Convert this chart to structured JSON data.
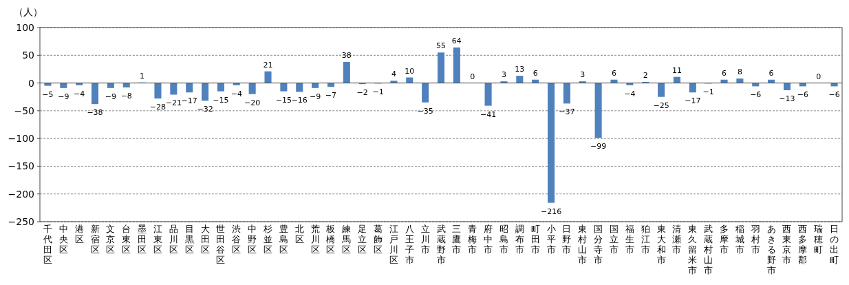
{
  "chart_data": {
    "type": "bar",
    "ylabel": "（人）",
    "categories": [
      "千代田区",
      "中央区",
      "港区",
      "新宿区",
      "文京区",
      "台東区",
      "墨田区",
      "江東区",
      "品川区",
      "目黒区",
      "大田区",
      "世田谷区",
      "渋谷区",
      "中野区",
      "杉並区",
      "豊島区",
      "北区",
      "荒川区",
      "板橋区",
      "練馬区",
      "足立区",
      "葛飾区",
      "江戸川区",
      "八王子市",
      "立川市",
      "武蔵野市",
      "三鷹市",
      "青梅市",
      "府中市",
      "昭島市",
      "調布市",
      "町田市",
      "小平市",
      "日野市",
      "東村山市",
      "国分寺市",
      "国立市",
      "福生市",
      "狛江市",
      "東大和市",
      "清瀬市",
      "東久留米市",
      "武蔵村山市",
      "多摩市",
      "稲城市",
      "羽村市",
      "あきる野市",
      "西東京市",
      "西多摩郡",
      "瑞穂町",
      "日の出町"
    ],
    "values": [
      -5,
      -9,
      -4,
      -38,
      -9,
      -8,
      1,
      -28,
      -21,
      -17,
      -32,
      -15,
      -4,
      -20,
      21,
      -15,
      -16,
      -9,
      -7,
      38,
      -2,
      -1,
      4,
      10,
      -35,
      55,
      64,
      0,
      -41,
      3,
      13,
      6,
      -216,
      -37,
      3,
      -99,
      6,
      -4,
      2,
      -25,
      11,
      -17,
      -1,
      6,
      8,
      -6,
      6,
      -13,
      -6,
      0,
      -6
    ],
    "color": "#4f81bd",
    "ylim": [
      -250,
      100
    ],
    "yticks": [
      100,
      50,
      0,
      -50,
      -100,
      -150,
      -200,
      -250
    ],
    "grid": "y",
    "data_labels": true
  }
}
